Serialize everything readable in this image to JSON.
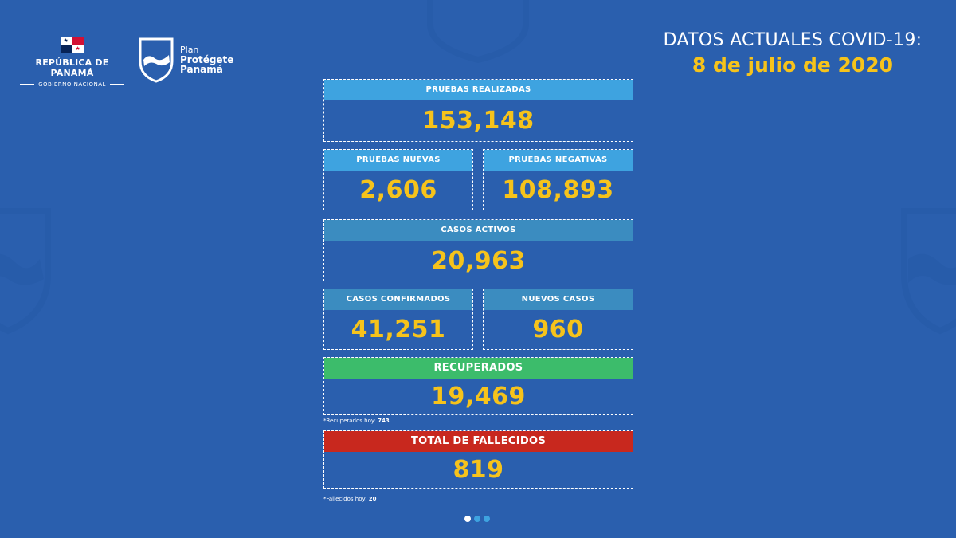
{
  "header": {
    "republic": "REPÚBLICA DE PANAMÁ",
    "government": "GOBIERNO NACIONAL",
    "plan_line1": "Plan",
    "plan_line2": "Protégete",
    "plan_line3": "Panamá",
    "title": "DATOS ACTUALES COVID-19:",
    "date": "8 de julio de 2020"
  },
  "colors": {
    "background": "#2a5fae",
    "light_blue_header": "#3ea3e0",
    "teal_header": "#3b8cc0",
    "green_header": "#3cbc6b",
    "red_header": "#c8281e",
    "value": "#f6c31b"
  },
  "panels": {
    "pruebas_realizadas": {
      "label": "PRUEBAS REALIZADAS",
      "value": "153,148"
    },
    "pruebas_nuevas": {
      "label": "PRUEBAS NUEVAS",
      "value": "2,606"
    },
    "pruebas_negativas": {
      "label": "PRUEBAS NEGATIVAS",
      "value": "108,893"
    },
    "casos_activos": {
      "label": "CASOS ACTIVOS",
      "value": "20,963"
    },
    "casos_confirmados": {
      "label": "CASOS CONFIRMADOS",
      "value": "41,251"
    },
    "nuevos_casos": {
      "label": "NUEVOS CASOS",
      "value": "960"
    },
    "recuperados": {
      "label": "RECUPERADOS",
      "value": "19,469"
    },
    "fallecidos": {
      "label": "TOTAL DE FALLECIDOS",
      "value": "819"
    }
  },
  "notes": {
    "recuperados_label": "*Recuperados hoy: ",
    "recuperados_value": "743",
    "fallecidos_label": "*Fallecidos hoy: ",
    "fallecidos_value": "20"
  },
  "pagination": {
    "total_pages": 3,
    "active_page": 1
  }
}
